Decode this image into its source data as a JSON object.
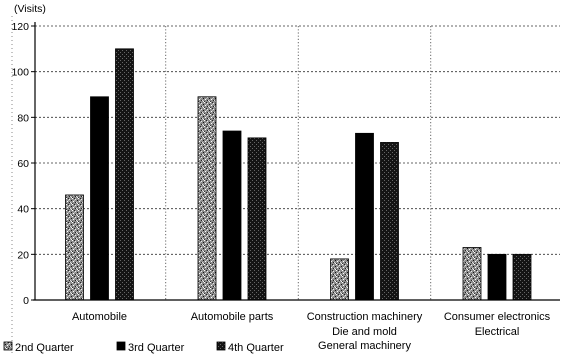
{
  "chart_data": {
    "type": "bar",
    "ylabel": "(Visits)",
    "ylim": [
      0,
      120
    ],
    "yticks": [
      0,
      20,
      40,
      60,
      80,
      100,
      120
    ],
    "categories": [
      "Automobile",
      "Automobile parts",
      "Construction machinery\nDie and mold\nGeneral machinery",
      "Consumer electronics\nElectrical"
    ],
    "series": [
      {
        "name": "2nd Quarter",
        "values": [
          46,
          89,
          18,
          23
        ],
        "color": "#8c8c8c"
      },
      {
        "name": "3rd Quarter",
        "values": [
          89,
          74,
          73,
          20
        ],
        "color": "#000000"
      },
      {
        "name": "4th Quarter",
        "values": [
          110,
          71,
          69,
          20
        ],
        "color": "#141414"
      }
    ],
    "grid": true,
    "legend": "bottom"
  }
}
